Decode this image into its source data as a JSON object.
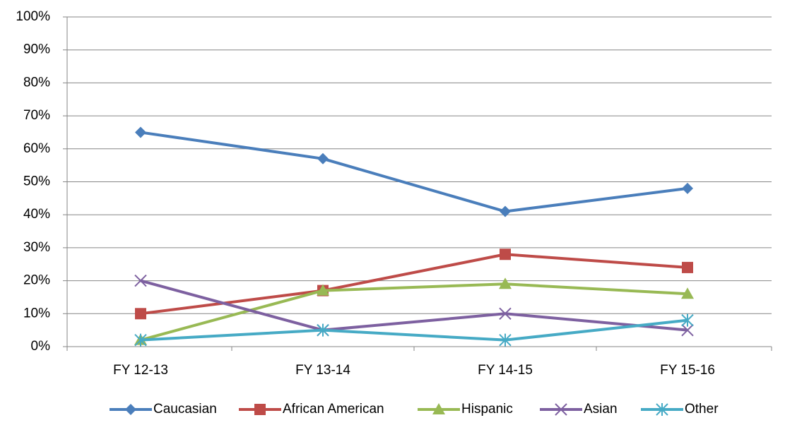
{
  "chart_data": {
    "type": "line",
    "categories": [
      "FY 12-13",
      "FY 13-14",
      "FY 14-15",
      "FY 15-16"
    ],
    "series": [
      {
        "name": "Caucasian",
        "color": "#4a7ebb",
        "marker": "diamond",
        "values": [
          65,
          57,
          41,
          48
        ]
      },
      {
        "name": "African American",
        "color": "#be4b48",
        "marker": "square",
        "values": [
          10,
          17,
          28,
          24
        ]
      },
      {
        "name": "Hispanic",
        "color": "#98b954",
        "marker": "triangle",
        "values": [
          2,
          17,
          19,
          16
        ]
      },
      {
        "name": "Asian",
        "color": "#7d60a0",
        "marker": "x",
        "values": [
          20,
          5,
          10,
          5
        ]
      },
      {
        "name": "Other",
        "color": "#46aac5",
        "marker": "star",
        "values": [
          2,
          5,
          2,
          8
        ]
      }
    ],
    "ylim": [
      0,
      100
    ],
    "yticks": [
      {
        "value": 0,
        "label": "0%"
      },
      {
        "value": 10,
        "label": "10%"
      },
      {
        "value": 20,
        "label": "20%"
      },
      {
        "value": 30,
        "label": "30%"
      },
      {
        "value": 40,
        "label": "40%"
      },
      {
        "value": 50,
        "label": "50%"
      },
      {
        "value": 60,
        "label": "60%"
      },
      {
        "value": 70,
        "label": "70%"
      },
      {
        "value": 80,
        "label": "80%"
      },
      {
        "value": 90,
        "label": "90%"
      },
      {
        "value": 100,
        "label": "100%"
      }
    ],
    "grid": true,
    "legend": "bottom"
  }
}
